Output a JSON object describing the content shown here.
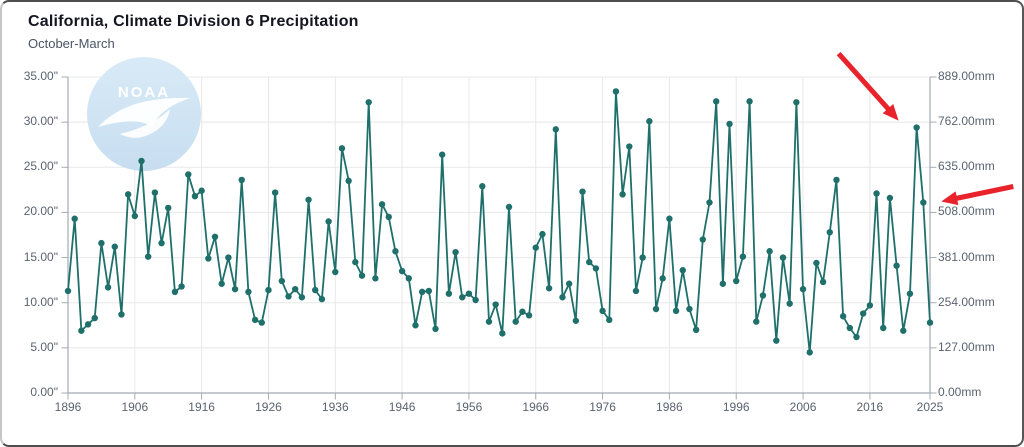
{
  "window": {
    "background": "#ffffff"
  },
  "header": {
    "title": "California, Climate Division 6 Precipitation",
    "subtitle": "October-March"
  },
  "watermark": {
    "text": "NOAA",
    "description": "faint NOAA emblem: light-blue circle with white seagull",
    "circle_color_top": "#d9eaf7",
    "circle_color_bottom": "#c7def0",
    "text_color": "#ffffff"
  },
  "colors": {
    "line": "#1f6f6b",
    "marker": "#1f6f6b",
    "grid": "#e8e8e8",
    "axis": "#a4abb3",
    "tick_label": "#5a6370",
    "title": "#15151f",
    "subtitle": "#4b5564",
    "annotation_arrow": "#e8232b"
  },
  "chart_data": {
    "type": "line",
    "title": "California, Climate Division 6 Precipitation",
    "subtitle": "October-March",
    "grid": true,
    "legend": false,
    "x_axis": {
      "range": [
        1896,
        2025
      ],
      "tick_labels": [
        "1896",
        "1906",
        "1916",
        "1926",
        "1936",
        "1946",
        "1956",
        "1966",
        "1976",
        "1986",
        "1996",
        "2006",
        "2016",
        "2025"
      ]
    },
    "y_axis_left": {
      "unit": "inches",
      "range": [
        0,
        35
      ],
      "tick_labels": [
        "35.00\"",
        "30.00\"",
        "25.00\"",
        "20.00\"",
        "15.00\"",
        "10.00\"",
        "5.00\"",
        "0.00\""
      ]
    },
    "y_axis_right": {
      "unit": "mm",
      "range": [
        0,
        889
      ],
      "tick_labels": [
        "889.00mm",
        "762.00mm",
        "635.00mm",
        "508.00mm",
        "381.00mm",
        "254.00mm",
        "127.00mm",
        "0.00mm"
      ]
    },
    "years": [
      1896,
      1897,
      1898,
      1899,
      1900,
      1901,
      1902,
      1903,
      1904,
      1905,
      1906,
      1907,
      1908,
      1909,
      1910,
      1911,
      1912,
      1913,
      1914,
      1915,
      1916,
      1917,
      1918,
      1919,
      1920,
      1921,
      1922,
      1923,
      1924,
      1925,
      1926,
      1927,
      1928,
      1929,
      1930,
      1931,
      1932,
      1933,
      1934,
      1935,
      1936,
      1937,
      1938,
      1939,
      1940,
      1941,
      1942,
      1943,
      1944,
      1945,
      1946,
      1947,
      1948,
      1949,
      1950,
      1951,
      1952,
      1953,
      1954,
      1955,
      1956,
      1957,
      1958,
      1959,
      1960,
      1961,
      1962,
      1963,
      1964,
      1965,
      1966,
      1967,
      1968,
      1969,
      1970,
      1971,
      1972,
      1973,
      1974,
      1975,
      1976,
      1977,
      1978,
      1979,
      1980,
      1981,
      1982,
      1983,
      1984,
      1985,
      1986,
      1987,
      1988,
      1989,
      1990,
      1991,
      1992,
      1993,
      1994,
      1995,
      1996,
      1997,
      1998,
      1999,
      2000,
      2001,
      2002,
      2003,
      2004,
      2005,
      2006,
      2007,
      2008,
      2009,
      2010,
      2011,
      2012,
      2013,
      2014,
      2015,
      2016,
      2017,
      2018,
      2019,
      2020,
      2021,
      2022,
      2023,
      2024,
      2025
    ],
    "values_inches": [
      11.3,
      19.3,
      6.9,
      7.6,
      8.3,
      16.6,
      11.7,
      16.2,
      8.7,
      22.0,
      19.6,
      25.7,
      15.1,
      22.2,
      16.6,
      20.5,
      11.2,
      11.8,
      24.2,
      21.8,
      22.4,
      14.9,
      17.3,
      12.1,
      15.0,
      11.5,
      23.6,
      11.2,
      8.1,
      7.8,
      11.4,
      22.2,
      12.4,
      10.7,
      11.5,
      10.6,
      21.4,
      11.4,
      10.4,
      19.0,
      13.4,
      27.1,
      23.5,
      14.5,
      13.0,
      32.2,
      12.7,
      20.9,
      19.5,
      15.7,
      13.5,
      12.7,
      7.5,
      11.2,
      11.3,
      7.1,
      26.4,
      11.0,
      15.6,
      10.6,
      11.0,
      10.3,
      22.9,
      7.9,
      9.8,
      6.6,
      20.6,
      7.9,
      9.0,
      8.6,
      16.1,
      17.6,
      11.6,
      29.2,
      10.6,
      12.1,
      8.0,
      22.3,
      14.5,
      13.8,
      9.1,
      8.1,
      33.4,
      22.0,
      27.3,
      11.3,
      15.0,
      30.1,
      9.3,
      12.7,
      19.3,
      9.1,
      13.6,
      9.3,
      7.0,
      17.0,
      21.1,
      32.3,
      12.1,
      29.8,
      12.4,
      15.1,
      32.3,
      7.9,
      10.8,
      15.7,
      5.8,
      15.0,
      9.9,
      32.2,
      11.5,
      4.5,
      14.4,
      12.3,
      17.8,
      23.6,
      8.5,
      7.2,
      6.2,
      8.8,
      9.7,
      22.1,
      7.2,
      21.6,
      14.1,
      6.9,
      11.0,
      29.4,
      21.1,
      7.8
    ],
    "annotations": [
      {
        "shape": "arrow",
        "color": "#e8232b",
        "target_year": 2023,
        "target_value_inches": 29.4,
        "direction": "from-upper-left-pointing-down-right"
      },
      {
        "shape": "arrow",
        "color": "#e8232b",
        "target_year": 2024,
        "target_value_inches": 21.1,
        "direction": "from-right-pointing-left"
      }
    ]
  }
}
